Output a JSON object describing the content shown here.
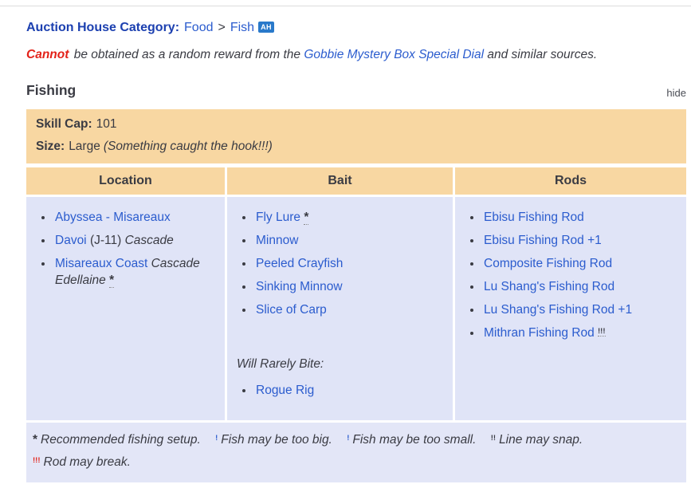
{
  "colors": {
    "accent_tan": "#f8d7a2",
    "cell_lavender": "#e0e4f7",
    "link_blue": "#2b5cce",
    "label_blue": "#1c40b0",
    "badge_blue": "#2979ca",
    "warning_red": "#e32219",
    "text_dark": "#3a3b43"
  },
  "header": {
    "ah_label": "Auction House Category:",
    "ah_food": "Food",
    "ah_sep": ">",
    "ah_fish": "Fish",
    "ah_badge": "AH",
    "cannot_lead": "Cannot",
    "cannot_mid": " be obtained as a random reward from the ",
    "cannot_link": "Gobbie Mystery Box Special Dial",
    "cannot_tail": " and similar sources."
  },
  "section": {
    "title": "Fishing",
    "hide": "hide"
  },
  "info": {
    "skill_cap_label": "Skill Cap:",
    "skill_cap_value": "101",
    "size_label": "Size:",
    "size_value": "Large",
    "size_note": "(Something caught the hook!!!)"
  },
  "table": {
    "headers": [
      "Location",
      "Bait",
      "Rods"
    ],
    "location_items": [
      {
        "segments": [
          {
            "t": "Abyssea - Misareaux",
            "s": "link"
          }
        ]
      },
      {
        "segments": [
          {
            "t": "Davoi",
            "s": "link"
          },
          {
            "t": " (J-11) ",
            "s": "plain"
          },
          {
            "t": "Cascade",
            "s": "em"
          }
        ]
      },
      {
        "segments": [
          {
            "t": "Misareaux Coast",
            "s": "link"
          },
          {
            "t": " ",
            "s": "plain"
          },
          {
            "t": "Cascade Edellaine",
            "s": "em"
          },
          {
            "t": " ",
            "s": "plain"
          },
          {
            "t": "*",
            "s": "ast",
            "dot": true
          }
        ]
      }
    ],
    "bait_items": [
      {
        "segments": [
          {
            "t": "Fly Lure",
            "s": "link"
          },
          {
            "t": " ",
            "s": "plain"
          },
          {
            "t": "*",
            "s": "ast",
            "dot": true
          }
        ]
      },
      {
        "segments": [
          {
            "t": "Minnow",
            "s": "link"
          }
        ]
      },
      {
        "segments": [
          {
            "t": "Peeled Crayfish",
            "s": "link"
          }
        ]
      },
      {
        "segments": [
          {
            "t": "Sinking Minnow",
            "s": "link"
          }
        ]
      },
      {
        "segments": [
          {
            "t": "Slice of Carp",
            "s": "link"
          }
        ]
      }
    ],
    "bait_rare_label": "Will Rarely Bite:",
    "bait_rare_items": [
      {
        "segments": [
          {
            "t": "Rogue Rig",
            "s": "link"
          }
        ]
      }
    ],
    "rod_items": [
      {
        "segments": [
          {
            "t": "Ebisu Fishing Rod",
            "s": "link"
          }
        ]
      },
      {
        "segments": [
          {
            "t": "Ebisu Fishing Rod +1",
            "s": "link"
          }
        ]
      },
      {
        "segments": [
          {
            "t": "Composite Fishing Rod",
            "s": "link"
          }
        ]
      },
      {
        "segments": [
          {
            "t": "Lu Shang's Fishing Rod",
            "s": "link"
          }
        ]
      },
      {
        "segments": [
          {
            "t": "Lu Shang's Fishing Rod +1",
            "s": "link"
          }
        ]
      },
      {
        "segments": [
          {
            "t": "Mithran Fishing Rod",
            "s": "link"
          },
          {
            "t": " ",
            "s": "plain"
          },
          {
            "t": "!!!",
            "s": "exd",
            "dot": true
          }
        ]
      }
    ]
  },
  "legend": {
    "items": [
      {
        "marker": "*",
        "style": "ast",
        "text": "Recommended fishing setup."
      },
      {
        "marker": "!",
        "style": "exb",
        "text": "Fish may be too big."
      },
      {
        "marker": "!",
        "style": "exb",
        "text": "Fish may be too small."
      },
      {
        "marker": "!!",
        "style": "exd",
        "text": "Line may snap."
      },
      {
        "marker": "!!!",
        "style": "exr",
        "text": "Rod may break."
      }
    ]
  }
}
